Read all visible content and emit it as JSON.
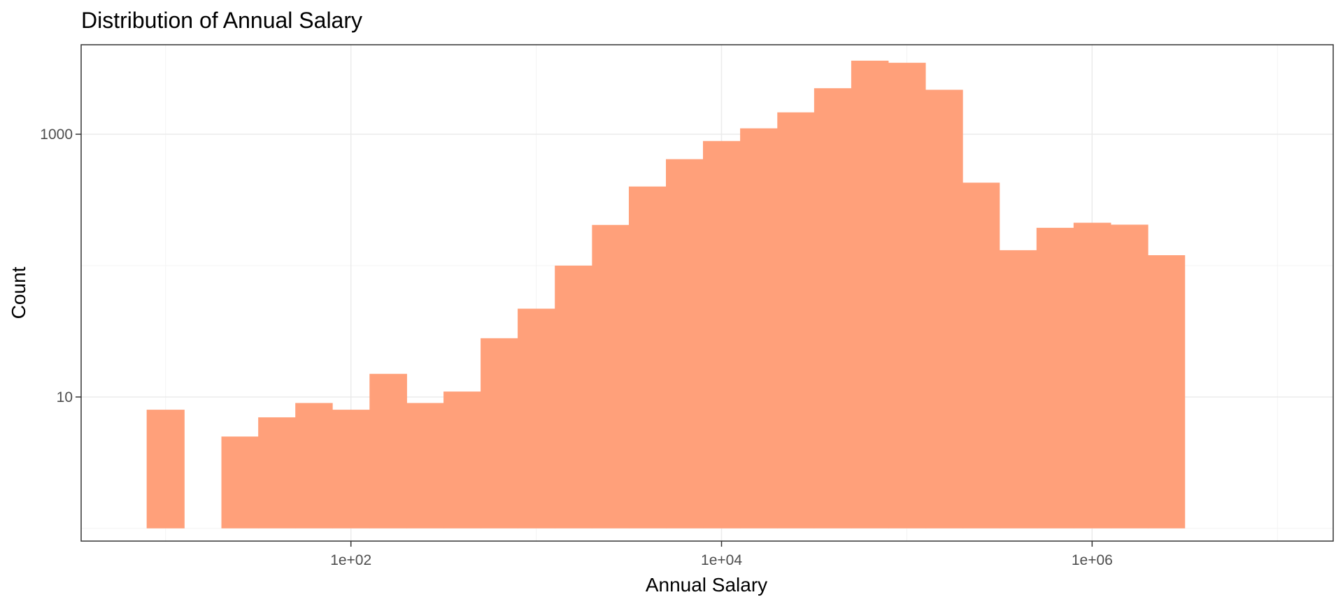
{
  "chart_data": {
    "type": "bar",
    "title": "Distribution of Annual Salary",
    "xlabel": "Annual Salary",
    "ylabel": "Count",
    "x_scale": "log10",
    "y_scale": "log10",
    "xlim": [
      3.5,
      20000000
    ],
    "ylim": [
      0.8,
      4800
    ],
    "x_ticks": [
      100,
      10000,
      1000000
    ],
    "x_tick_labels": [
      "1e+02",
      "1e+04",
      "1e+06"
    ],
    "y_ticks": [
      10,
      1000
    ],
    "y_tick_labels": [
      "10",
      "1000"
    ],
    "grid": true,
    "legend": "none",
    "bar_color": "#FFA07A",
    "bins": [
      {
        "x0": 7.9,
        "x1": 12.6,
        "count": 8
      },
      {
        "x0": 12.6,
        "x1": 20.0,
        "count": 0
      },
      {
        "x0": 20.0,
        "x1": 31.6,
        "count": 5
      },
      {
        "x0": 31.6,
        "x1": 50.1,
        "count": 7
      },
      {
        "x0": 50.1,
        "x1": 79.4,
        "count": 9
      },
      {
        "x0": 79.4,
        "x1": 126,
        "count": 8
      },
      {
        "x0": 126,
        "x1": 200,
        "count": 15
      },
      {
        "x0": 200,
        "x1": 316,
        "count": 9
      },
      {
        "x0": 316,
        "x1": 501,
        "count": 11
      },
      {
        "x0": 501,
        "x1": 794,
        "count": 28
      },
      {
        "x0": 794,
        "x1": 1260,
        "count": 47
      },
      {
        "x0": 1260,
        "x1": 2000,
        "count": 100
      },
      {
        "x0": 2000,
        "x1": 3160,
        "count": 204
      },
      {
        "x0": 3160,
        "x1": 5010,
        "count": 400
      },
      {
        "x0": 5010,
        "x1": 7940,
        "count": 646
      },
      {
        "x0": 7940,
        "x1": 12600,
        "count": 888
      },
      {
        "x0": 12600,
        "x1": 20000,
        "count": 1109
      },
      {
        "x0": 20000,
        "x1": 31600,
        "count": 1467
      },
      {
        "x0": 31600,
        "x1": 50100,
        "count": 2240
      },
      {
        "x0": 50100,
        "x1": 79400,
        "count": 3630
      },
      {
        "x0": 79400,
        "x1": 126000,
        "count": 3500
      },
      {
        "x0": 126000,
        "x1": 200000,
        "count": 2180
      },
      {
        "x0": 200000,
        "x1": 316000,
        "count": 428
      },
      {
        "x0": 316000,
        "x1": 501000,
        "count": 131
      },
      {
        "x0": 501000,
        "x1": 794000,
        "count": 194
      },
      {
        "x0": 794000,
        "x1": 1260000,
        "count": 212
      },
      {
        "x0": 1260000,
        "x1": 2000000,
        "count": 205
      },
      {
        "x0": 2000000,
        "x1": 3160000,
        "count": 120
      }
    ]
  }
}
